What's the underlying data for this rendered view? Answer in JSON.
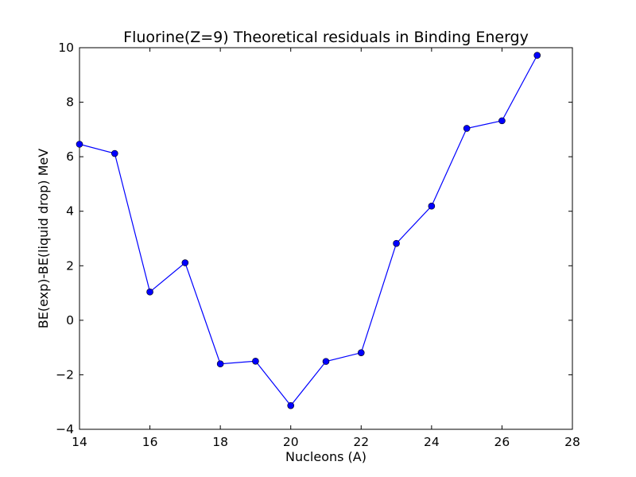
{
  "chart_data": {
    "type": "line",
    "title": "Fluorine(Z=9) Theoretical residuals in Binding Energy",
    "xlabel": "Nucleons (A)",
    "ylabel": "BE(exp)-BE(liquid drop) MeV",
    "xlim": [
      14,
      28
    ],
    "ylim": [
      -4,
      10
    ],
    "xticks": [
      14,
      16,
      18,
      20,
      22,
      24,
      26,
      28
    ],
    "yticks": [
      -4,
      -2,
      0,
      2,
      4,
      6,
      8,
      10
    ],
    "xtick_labels": [
      "14",
      "16",
      "18",
      "20",
      "22",
      "24",
      "26",
      "28"
    ],
    "ytick_labels": [
      "−4",
      "−2",
      "0",
      "2",
      "4",
      "6",
      "8",
      "10"
    ],
    "grid": false,
    "legend": "none",
    "series": [
      {
        "x": [
          14,
          15,
          16,
          17,
          18,
          19,
          20,
          21,
          22,
          23,
          24,
          25,
          26,
          27
        ],
        "y": [
          6.46,
          6.12,
          1.04,
          2.11,
          -1.6,
          -1.5,
          -3.13,
          -1.51,
          -1.19,
          2.82,
          4.19,
          7.04,
          7.32,
          9.72
        ],
        "color": "#0000ff",
        "marker": "circle"
      }
    ]
  }
}
